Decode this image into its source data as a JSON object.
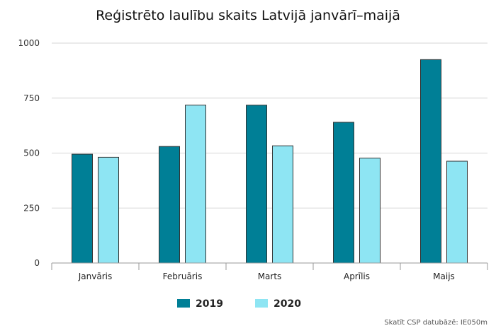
{
  "chart_data": {
    "type": "bar",
    "title": "Reģistrēto laulību skaits Latvijā janvārī–maijā",
    "xlabel": "",
    "ylabel": "",
    "categories": [
      "Janvāris",
      "Februāris",
      "Marts",
      "Aprīlis",
      "Maijs"
    ],
    "series": [
      {
        "name": "2019",
        "values": [
          495,
          530,
          718,
          640,
          925
        ],
        "color": "#007f96"
      },
      {
        "name": "2020",
        "values": [
          481,
          718,
          533,
          477,
          463
        ],
        "color": "#8ee5f3"
      }
    ],
    "ylim": [
      0,
      1000
    ],
    "yticks": [
      0,
      250,
      500,
      750,
      1000
    ],
    "grid": true,
    "legend_position": "bottom-center"
  },
  "source_note": "Skatīt CSP datubāzē: IE050m"
}
